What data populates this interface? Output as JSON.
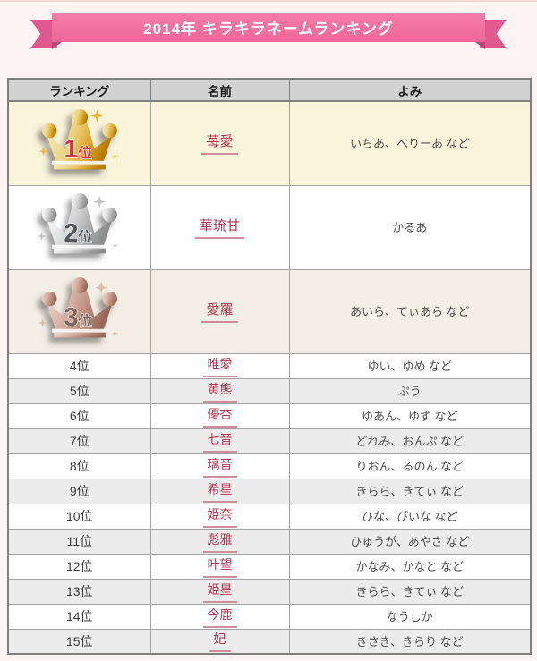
{
  "banner": {
    "title": "2014年 キラキラネームランキング"
  },
  "table": {
    "headers": [
      "ランキング",
      "名前",
      "よみ"
    ],
    "rows": [
      {
        "rank": "1位",
        "crown": "gold",
        "name": "苺愛",
        "yomi": "いちあ、べりーあ など"
      },
      {
        "rank": "2位",
        "crown": "silver",
        "name": "華琉甘",
        "yomi": "かるあ"
      },
      {
        "rank": "3位",
        "crown": "bronze",
        "name": "愛羅",
        "yomi": "あいら、てぃあら など"
      },
      {
        "rank": "4位",
        "name": "唯愛",
        "yomi": "ゆい、ゆめ など"
      },
      {
        "rank": "5位",
        "name": "黄熊",
        "yomi": "ぷう"
      },
      {
        "rank": "6位",
        "name": "優杏",
        "yomi": "ゆあん、ゆず など"
      },
      {
        "rank": "7位",
        "name": "七音",
        "yomi": "どれみ、おんぷ など"
      },
      {
        "rank": "8位",
        "name": "璃音",
        "yomi": "りおん、るのん など"
      },
      {
        "rank": "9位",
        "name": "希星",
        "yomi": "きらら、きてぃ など"
      },
      {
        "rank": "10位",
        "name": "姫奈",
        "yomi": "ひな、ぴいな など"
      },
      {
        "rank": "11位",
        "name": "彪雅",
        "yomi": "ひゅうが、あやさ など"
      },
      {
        "rank": "12位",
        "name": "叶望",
        "yomi": "かなみ、かなと など"
      },
      {
        "rank": "13位",
        "name": "姫星",
        "yomi": "きらら、きてぃ など"
      },
      {
        "rank": "14位",
        "name": "今鹿",
        "yomi": "なうしか"
      },
      {
        "rank": "15位",
        "name": "妃",
        "yomi": "きさき、きらり など"
      }
    ]
  },
  "icons": {
    "rank1": "gold-crown-icon",
    "rank2": "silver-crown-icon",
    "rank3": "bronze-crown-icon"
  },
  "colors": {
    "page_bg": "#fcf3f2",
    "banner_pink": "#f2709f",
    "banner_tail": "#e0598f",
    "banner_fold": "#b94b78",
    "header_bg": "#d2d2d2",
    "name_red": "#b23750",
    "name_underline": "#cc8f9b",
    "row1_bg": "#f9f4da",
    "row3_bg": "#f3efe5",
    "alt_row_bg": "#ececec",
    "gold": "#d9a21a",
    "silver": "#b9b9b9",
    "bronze": "#b48372",
    "crown1_label": "#d2333c",
    "crown2_label": "#4f565c",
    "crown3_label": "#7d6558"
  }
}
